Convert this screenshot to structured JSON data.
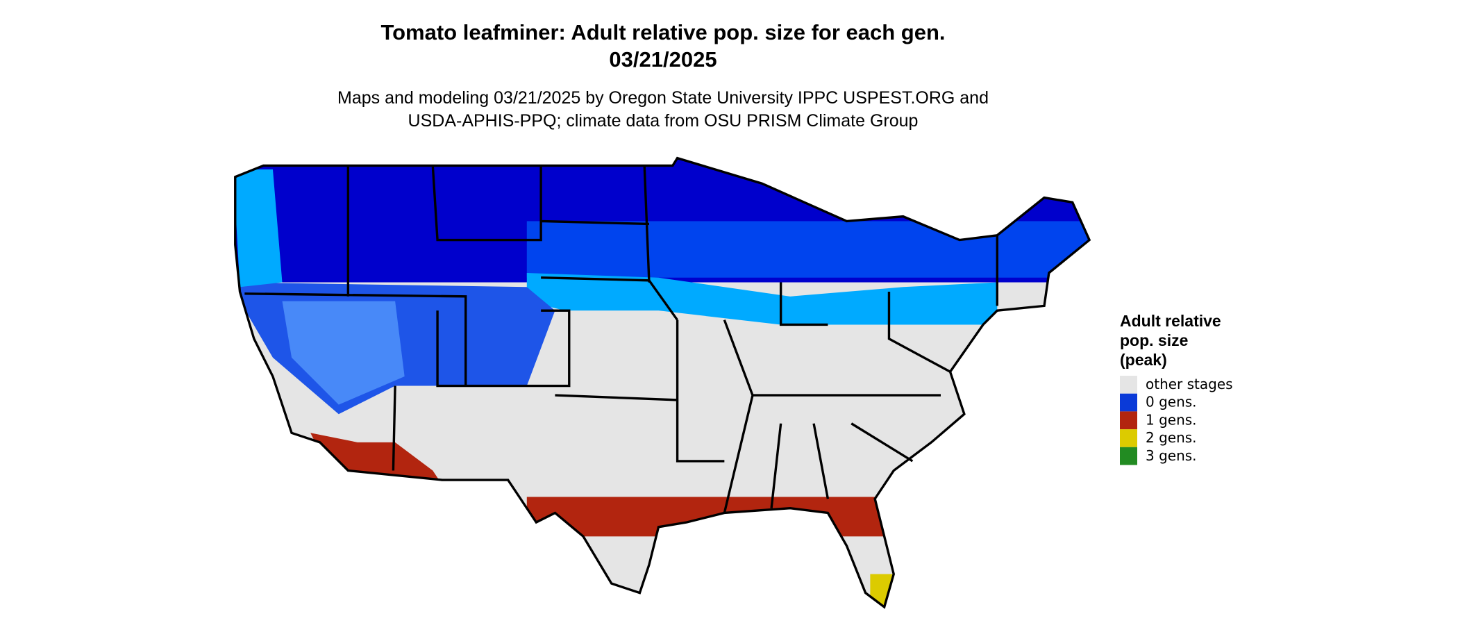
{
  "title_lines": [
    "Tomato leafminer: Adult relative pop. size for each gen.",
    "03/21/2025"
  ],
  "subtitle_lines": [
    "Maps and modeling 03/21/2025 by Oregon State University IPPC USPEST.ORG and",
    "USDA-APHIS-PPQ; climate data from OSU PRISM Climate Group"
  ],
  "legend": {
    "title_lines": [
      "Adult relative",
      "pop. size",
      "(peak)"
    ],
    "items": [
      {
        "label": "other stages",
        "color": "#e5e5e5"
      },
      {
        "label": "0 gens.",
        "color": "#0a3ad8"
      },
      {
        "label": "1 gens.",
        "color": "#b2250f"
      },
      {
        "label": "2 gens.",
        "color": "#dccb00"
      },
      {
        "label": "3 gens.",
        "color": "#228b22"
      }
    ]
  }
}
